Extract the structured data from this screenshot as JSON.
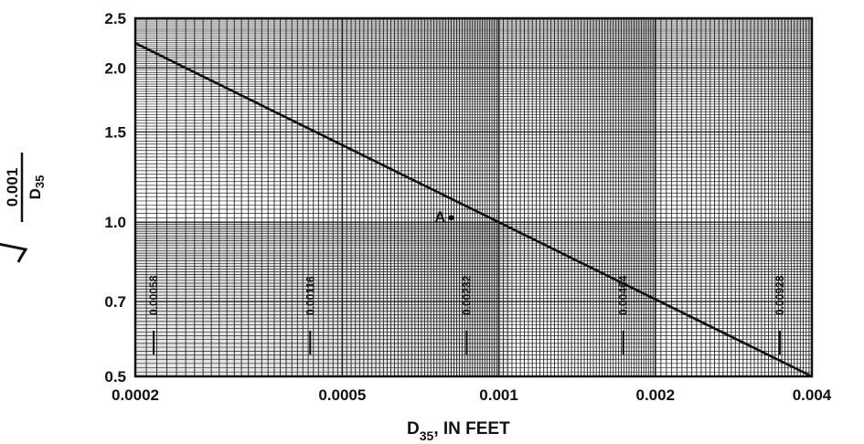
{
  "chart_data": {
    "type": "line",
    "xlabel_main": "D",
    "xlabel_sub": "35",
    "xlabel_rest": ", IN FEET",
    "ylabel": {
      "numerator": "0.001",
      "denominator_main": "D",
      "denominator_sub": "35"
    },
    "x_scale": "log",
    "y_scale": "log",
    "xlim": [
      0.0002,
      0.004
    ],
    "ylim": [
      0.5,
      2.5
    ],
    "x_ticks": [
      {
        "value": 0.0002,
        "label": "0.0002"
      },
      {
        "value": 0.0005,
        "label": "0.0005"
      },
      {
        "value": 0.001,
        "label": "0.001"
      },
      {
        "value": 0.002,
        "label": "0.002"
      },
      {
        "value": 0.004,
        "label": "0.004"
      }
    ],
    "y_ticks": [
      {
        "value": 0.5,
        "label": "0.5"
      },
      {
        "value": 0.7,
        "label": "0.7"
      },
      {
        "value": 1.0,
        "label": "1.0"
      },
      {
        "value": 1.5,
        "label": "1.5"
      },
      {
        "value": 2.0,
        "label": "2.0"
      },
      {
        "value": 2.5,
        "label": "2.5"
      }
    ],
    "grid": true,
    "series": [
      {
        "x": [
          0.0002,
          0.004
        ],
        "y": [
          2.236,
          0.5
        ]
      }
    ],
    "annotations": [
      {
        "text": "A",
        "x": 0.00081,
        "y": 1.02
      }
    ],
    "vertical_notes": [
      {
        "text": "0.00058",
        "x": 0.00021
      },
      {
        "text": "0.00116",
        "x": 0.00042
      },
      {
        "text": "0.00232",
        "x": 0.00084
      },
      {
        "text": "0.00464",
        "x": 0.00168
      },
      {
        "text": "0.00928",
        "x": 0.00336
      }
    ],
    "shaded_band": {
      "y_from": 0.5,
      "y_to": 1.0
    }
  }
}
